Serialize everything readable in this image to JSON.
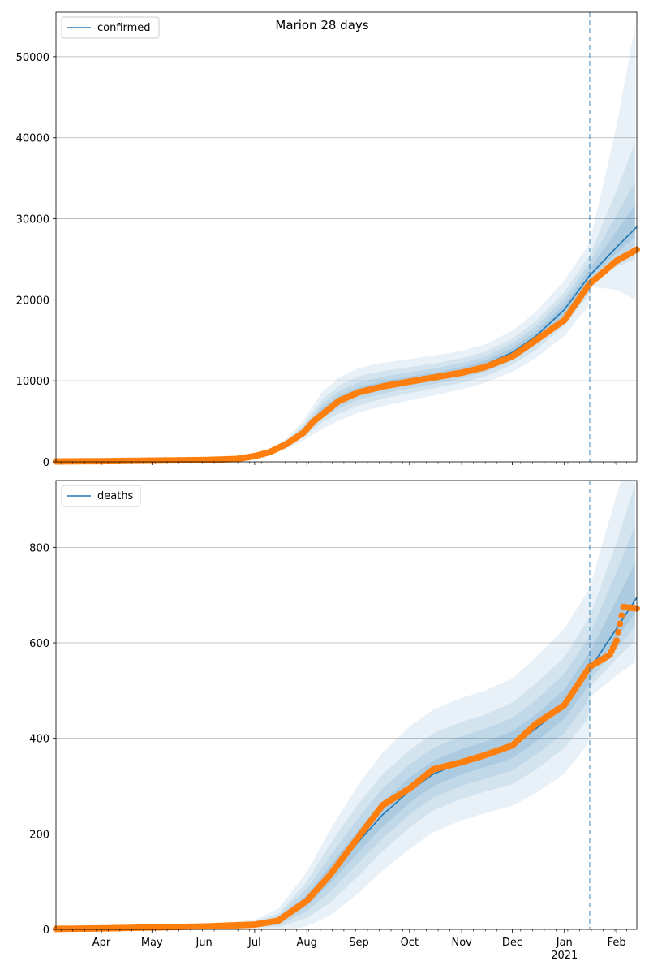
{
  "figure": {
    "title": "Marion 28 days"
  },
  "chart_data": [
    {
      "type": "line",
      "title": "Marion 28 days",
      "xlabel": "",
      "ylabel": "",
      "x_range": [
        "2020-03-05",
        "2021-02-13"
      ],
      "ylim": [
        0,
        55500
      ],
      "yticks": [
        0,
        10000,
        20000,
        30000,
        40000,
        50000
      ],
      "grid": "horizontal",
      "legend": "top-left",
      "forecast_start": "2021-01-16",
      "series": [
        {
          "name": "confirmed",
          "kind": "model-line",
          "color": "#1f77b4",
          "x": [
            "2020-03-05",
            "2020-04-01",
            "2020-05-01",
            "2020-06-01",
            "2020-06-20",
            "2020-07-01",
            "2020-07-10",
            "2020-07-20",
            "2020-07-30",
            "2020-08-10",
            "2020-08-20",
            "2020-09-01",
            "2020-09-15",
            "2020-10-01",
            "2020-10-15",
            "2020-11-01",
            "2020-11-15",
            "2020-12-01",
            "2020-12-15",
            "2021-01-01",
            "2021-01-16",
            "2021-02-01",
            "2021-02-13"
          ],
          "values": [
            50,
            80,
            150,
            250,
            400,
            700,
            1200,
            2200,
            3800,
            6200,
            7600,
            8700,
            9400,
            10000,
            10500,
            11200,
            12000,
            13500,
            15500,
            18800,
            23000,
            26500,
            29000
          ]
        },
        {
          "name": "",
          "kind": "observed-points",
          "color": "#ff7f0e",
          "x": [
            "2020-03-05",
            "2020-04-01",
            "2020-05-01",
            "2020-06-01",
            "2020-06-20",
            "2020-07-01",
            "2020-07-10",
            "2020-07-20",
            "2020-07-30",
            "2020-08-05",
            "2020-08-20",
            "2020-09-01",
            "2020-09-15",
            "2020-10-01",
            "2020-10-15",
            "2020-11-01",
            "2020-11-15",
            "2020-12-01",
            "2020-12-15",
            "2021-01-01",
            "2021-01-16",
            "2021-02-01",
            "2021-02-13"
          ],
          "values": [
            50,
            80,
            150,
            220,
            350,
            700,
            1200,
            2200,
            3600,
            5000,
            7500,
            8600,
            9300,
            9900,
            10400,
            11000,
            11700,
            13000,
            15000,
            17500,
            22000,
            24800,
            26200
          ]
        }
      ],
      "bands": [
        {
          "lower": [
            0,
            0,
            0,
            0,
            0,
            0,
            0,
            0,
            0,
            0,
            0,
            0,
            0,
            0,
            0,
            0,
            0,
            0,
            0,
            0,
            0,
            0,
            0
          ],
          "upper_offset": "widest"
        },
        {
          "level": 1
        },
        {
          "level": 2
        },
        {
          "level": 3
        }
      ],
      "band_width": [
        [
          0,
          10,
          20,
          40,
          80,
          150,
          300,
          700,
          1300,
          2400,
          2800,
          2900,
          2800,
          2700,
          2600,
          2500,
          2500,
          2700,
          3000,
          3600,
          4000,
          15000,
          26000
        ],
        [
          0,
          5,
          10,
          20,
          40,
          80,
          150,
          400,
          800,
          1500,
          1800,
          1900,
          1800,
          1700,
          1600,
          1600,
          1600,
          1700,
          1900,
          2200,
          2500,
          7000,
          11000
        ],
        [
          0,
          3,
          6,
          12,
          25,
          50,
          100,
          250,
          500,
          900,
          1100,
          1100,
          1100,
          1050,
          1000,
          1000,
          1000,
          1100,
          1200,
          1400,
          1600,
          4000,
          6000
        ],
        [
          0,
          1,
          3,
          6,
          12,
          25,
          50,
          120,
          250,
          450,
          550,
          550,
          550,
          520,
          500,
          500,
          500,
          550,
          600,
          700,
          800,
          2000,
          3000
        ]
      ]
    },
    {
      "type": "line",
      "title": "",
      "xlabel": "",
      "ylabel": "",
      "x_range": [
        "2020-03-05",
        "2021-02-13"
      ],
      "ylim": [
        0,
        940
      ],
      "yticks": [
        0,
        200,
        400,
        600,
        800
      ],
      "grid": "horizontal",
      "legend": "top-left",
      "forecast_start": "2021-01-16",
      "xticks": [
        "Apr",
        "May",
        "Jun",
        "Jul",
        "Aug",
        "Sep",
        "Oct",
        "Nov",
        "Dec",
        "Jan",
        "Feb"
      ],
      "xtick_year": "2021",
      "series": [
        {
          "name": "deaths",
          "kind": "model-line",
          "color": "#1f77b4",
          "x": [
            "2020-03-05",
            "2020-04-01",
            "2020-05-01",
            "2020-06-01",
            "2020-07-01",
            "2020-07-15",
            "2020-08-01",
            "2020-08-15",
            "2020-09-01",
            "2020-09-15",
            "2020-10-01",
            "2020-10-15",
            "2020-11-01",
            "2020-11-15",
            "2020-12-01",
            "2020-12-15",
            "2021-01-01",
            "2021-01-16",
            "2021-02-01",
            "2021-02-13"
          ],
          "values": [
            1,
            2,
            4,
            6,
            10,
            18,
            60,
            115,
            185,
            240,
            290,
            325,
            350,
            365,
            385,
            420,
            470,
            545,
            630,
            695
          ]
        },
        {
          "name": "",
          "kind": "observed-points",
          "color": "#ff7f0e",
          "x": [
            "2020-03-05",
            "2020-04-01",
            "2020-05-01",
            "2020-06-01",
            "2020-07-01",
            "2020-07-15",
            "2020-08-01",
            "2020-08-15",
            "2020-09-01",
            "2020-09-15",
            "2020-10-01",
            "2020-10-15",
            "2020-11-01",
            "2020-11-15",
            "2020-12-01",
            "2020-12-15",
            "2021-01-01",
            "2021-01-16",
            "2021-01-28",
            "2021-02-01",
            "2021-02-05",
            "2021-02-13"
          ],
          "values": [
            1,
            2,
            4,
            6,
            10,
            18,
            60,
            115,
            195,
            260,
            295,
            335,
            350,
            365,
            385,
            430,
            470,
            550,
            575,
            605,
            675,
            672
          ]
        }
      ],
      "band_width": [
        [
          0,
          1,
          2,
          4,
          10,
          25,
          60,
          95,
          120,
          130,
          135,
          135,
          135,
          135,
          140,
          150,
          160,
          170,
          280,
          380
        ],
        [
          0,
          1,
          1,
          3,
          6,
          15,
          40,
          65,
          80,
          85,
          85,
          85,
          85,
          85,
          90,
          95,
          100,
          110,
          180,
          250
        ],
        [
          0,
          0,
          1,
          2,
          4,
          10,
          25,
          40,
          50,
          55,
          55,
          55,
          55,
          55,
          58,
          60,
          65,
          70,
          120,
          160
        ],
        [
          0,
          0,
          0,
          1,
          2,
          5,
          12,
          20,
          25,
          28,
          28,
          28,
          28,
          28,
          30,
          30,
          32,
          35,
          60,
          80
        ]
      ]
    }
  ]
}
